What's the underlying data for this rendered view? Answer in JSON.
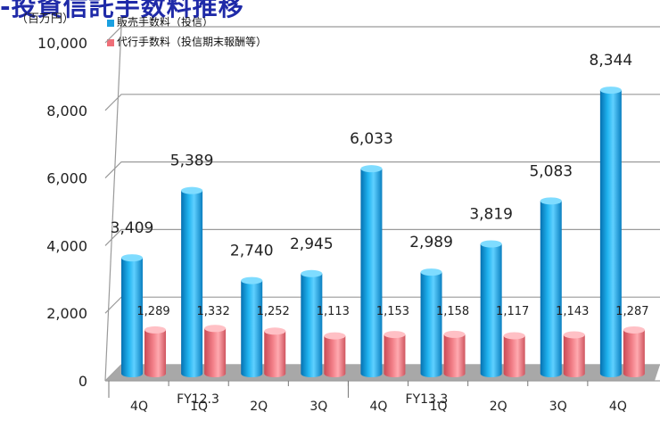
{
  "title_fragment": "-投資信託手数料推移",
  "unit_label": "（百万円）",
  "colors": {
    "blue": "#0aa0e0",
    "red": "#f0707a",
    "floor": "#a8a8a8"
  },
  "legend": [
    {
      "label": "販売手数料（投信）",
      "color": "#1aa0e0"
    },
    {
      "label": "代行手数料（投信期末報酬等）",
      "color": "#ef6f78"
    }
  ],
  "chart_data": {
    "type": "bar",
    "categories": [
      "4Q",
      "1Q",
      "2Q",
      "3Q",
      "4Q",
      "1Q",
      "2Q",
      "3Q",
      "4Q"
    ],
    "groups": [
      {
        "label": "FY12.3"
      },
      {
        "label": "FY13.3"
      }
    ],
    "series": [
      {
        "name": "販売手数料（投信）",
        "values": [
          3409,
          5389,
          2740,
          2945,
          6033,
          2989,
          3819,
          5083,
          8344
        ]
      },
      {
        "name": "代行手数料（投信期末報酬等）",
        "values": [
          1289,
          1332,
          1252,
          1113,
          1153,
          1158,
          1117,
          1143,
          1287
        ]
      }
    ],
    "value_labels": {
      "blue": [
        "3,409",
        "5,389",
        "2,740",
        "2,945",
        "6,033",
        "2,989",
        "3,819",
        "5,083",
        "8,344"
      ],
      "red": [
        "1,289",
        "1,332",
        "1,252",
        "1,113",
        "1,153",
        "1,158",
        "1,117",
        "1,143",
        "1,287"
      ]
    },
    "yticks": [
      "0",
      "2,000",
      "4,000",
      "6,000",
      "8,000",
      "10,000"
    ],
    "ylim": [
      0,
      10000
    ],
    "grid": true,
    "legend_position": "top"
  }
}
